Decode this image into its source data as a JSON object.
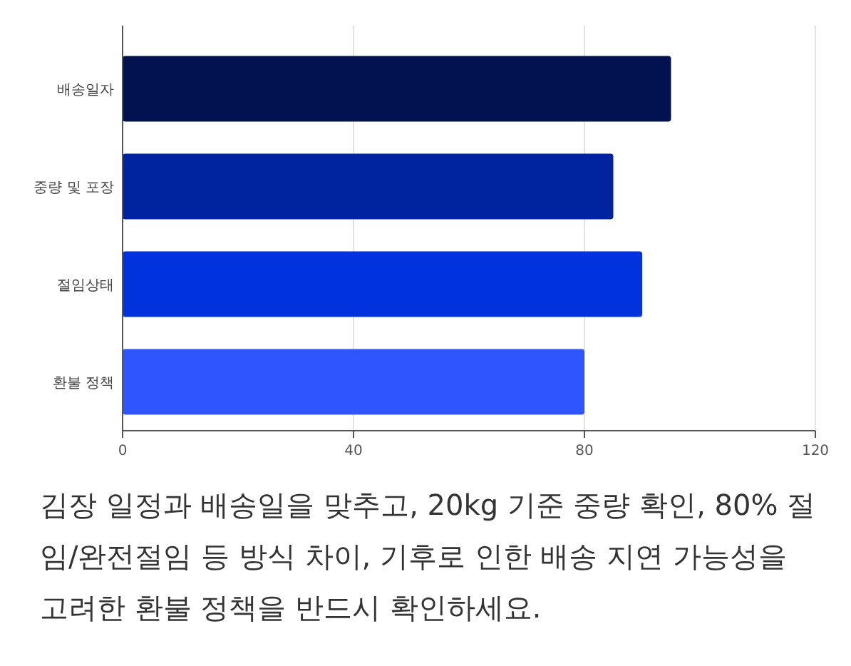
{
  "chart_data": {
    "type": "bar",
    "orientation": "horizontal",
    "categories": [
      "배송일자",
      "중량 및 포장",
      "절임상태",
      "환불 정책"
    ],
    "values": [
      95,
      85,
      90,
      80
    ],
    "colors": [
      "#021250",
      "#0024a0",
      "#0033dd",
      "#2f55ff"
    ],
    "xlim": [
      0,
      120
    ],
    "xticks": [
      0,
      40,
      80,
      120
    ],
    "grid": "x",
    "annotations": [
      "김장 일정과 배송일을 맞추고, 20kg 기준 중량 확인, 80% 절임/완전절임 등 방식 차이, 기후로 인한 배송 지연 가능성을 고려한 환불 정책을 반드시 확인하세요."
    ]
  }
}
